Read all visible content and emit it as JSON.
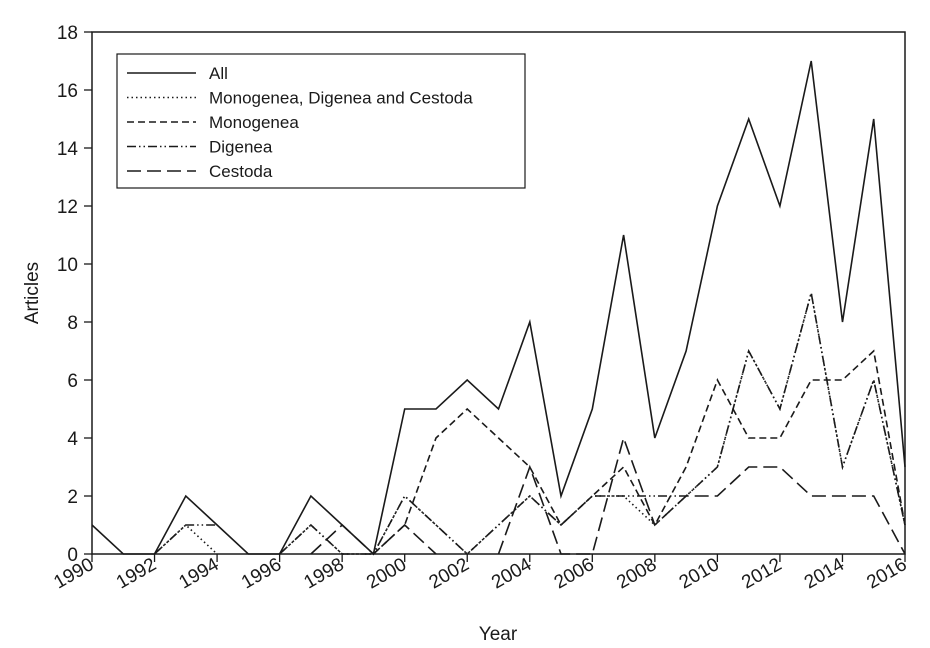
{
  "chart_data": {
    "type": "line",
    "title": "",
    "xlabel": "Year",
    "ylabel": "Articles",
    "xlim": [
      1990,
      2016
    ],
    "ylim": [
      0,
      18
    ],
    "grid": false,
    "legend_position": "upper-left",
    "x": [
      1990,
      1991,
      1992,
      1993,
      1994,
      1995,
      1996,
      1997,
      1998,
      1999,
      2000,
      2001,
      2002,
      2003,
      2004,
      2005,
      2006,
      2007,
      2008,
      2009,
      2010,
      2011,
      2012,
      2013,
      2014,
      2015,
      2016
    ],
    "x_ticks": [
      "1990",
      "1992",
      "1994",
      "1996",
      "1998",
      "2000",
      "2002",
      "2004",
      "2006",
      "2008",
      "2010",
      "2012",
      "2014",
      "2016"
    ],
    "y_ticks": [
      "0",
      "2",
      "4",
      "6",
      "8",
      "10",
      "12",
      "14",
      "16",
      "18"
    ],
    "series": [
      {
        "name": "All",
        "style": "solid",
        "values": [
          1,
          0,
          0,
          2,
          1,
          0,
          0,
          2,
          1,
          0,
          5,
          5,
          6,
          5,
          8,
          2,
          5,
          11,
          4,
          7,
          12,
          15,
          12,
          17,
          8,
          15,
          3
        ]
      },
      {
        "name": "Monogenea, Digenea and Cestoda",
        "style": "dotted",
        "values": [
          null,
          null,
          0,
          1,
          0,
          null,
          0,
          1,
          0,
          0,
          2,
          1,
          0,
          1,
          2,
          1,
          2,
          2,
          1,
          2,
          3,
          7,
          5,
          9,
          3,
          6,
          1
        ]
      },
      {
        "name": "Monogenea",
        "style": "dashed",
        "values": [
          null,
          null,
          null,
          null,
          null,
          null,
          null,
          null,
          null,
          0,
          1,
          4,
          5,
          4,
          3,
          1,
          2,
          3,
          1,
          3,
          6,
          4,
          4,
          6,
          6,
          7,
          1
        ]
      },
      {
        "name": "Digenea",
        "style": "dash-dot-dot",
        "values": [
          null,
          null,
          0,
          1,
          1,
          null,
          0,
          1,
          0,
          0,
          2,
          1,
          0,
          1,
          2,
          1,
          2,
          2,
          2,
          2,
          3,
          7,
          5,
          9,
          3,
          6,
          1
        ]
      },
      {
        "name": "Cestoda",
        "style": "long-dash",
        "values": [
          null,
          null,
          null,
          null,
          null,
          null,
          null,
          0,
          1,
          0,
          1,
          0,
          null,
          0,
          3,
          0,
          0,
          4,
          1,
          2,
          2,
          3,
          3,
          2,
          2,
          2,
          0
        ]
      }
    ]
  },
  "legend": {
    "items": [
      {
        "label": "All"
      },
      {
        "label": "Monogenea, Digenea and Cestoda"
      },
      {
        "label": "Monogenea"
      },
      {
        "label": "Digenea"
      },
      {
        "label": "Cestoda"
      }
    ]
  },
  "axes": {
    "xlabel": "Year",
    "ylabel": "Articles"
  },
  "colors": {
    "line": "#1a1a1a",
    "background": "#ffffff"
  }
}
